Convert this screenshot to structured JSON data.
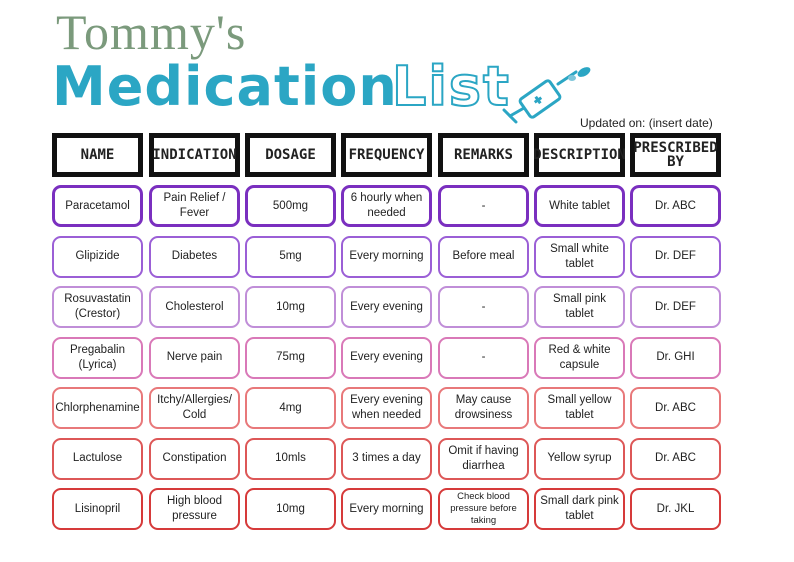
{
  "title": {
    "line1": "Tommy's",
    "line2": "Medication",
    "line3": "List"
  },
  "updated": "Updated on: (insert date)",
  "icons": {
    "syringe": "syringe-icon"
  },
  "columns": [
    "NAME",
    "INDICATION",
    "DOSAGE",
    "FREQUENCY",
    "REMARKS",
    "DESCRIPTION",
    "PRESCRIBED BY"
  ],
  "row_colors": [
    "#7a2fbf",
    "#9b5fd6",
    "#c08ed8",
    "#d979b8",
    "#e8787a",
    "#dd5757",
    "#d63a3a"
  ],
  "rows": [
    [
      "Paracetamol",
      "Pain Relief / Fever",
      "500mg",
      "6 hourly when needed",
      "-",
      "White tablet",
      "Dr. ABC"
    ],
    [
      "Glipizide",
      "Diabetes",
      "5mg",
      "Every morning",
      "Before meal",
      "Small white tablet",
      "Dr. DEF"
    ],
    [
      "Rosuvastatin (Crestor)",
      "Cholesterol",
      "10mg",
      "Every evening",
      "-",
      "Small pink tablet",
      "Dr. DEF"
    ],
    [
      "Pregabalin (Lyrica)",
      "Nerve pain",
      "75mg",
      "Every evening",
      "-",
      "Red & white capsule",
      "Dr. GHI"
    ],
    [
      "Chlorphenamine",
      "Itchy/Allergies/ Cold",
      "4mg",
      "Every evening when needed",
      "May cause drowsiness",
      "Small yellow tablet",
      "Dr. ABC"
    ],
    [
      "Lactulose",
      "Constipation",
      "10mls",
      "3 times a day",
      "Omit if having diarrhea",
      "Yellow syrup",
      "Dr. ABC"
    ],
    [
      "Lisinopril",
      "High blood pressure",
      "10mg",
      "Every morning",
      "Check blood pressure before taking",
      "Small dark pink tablet",
      "Dr. JKL"
    ]
  ]
}
